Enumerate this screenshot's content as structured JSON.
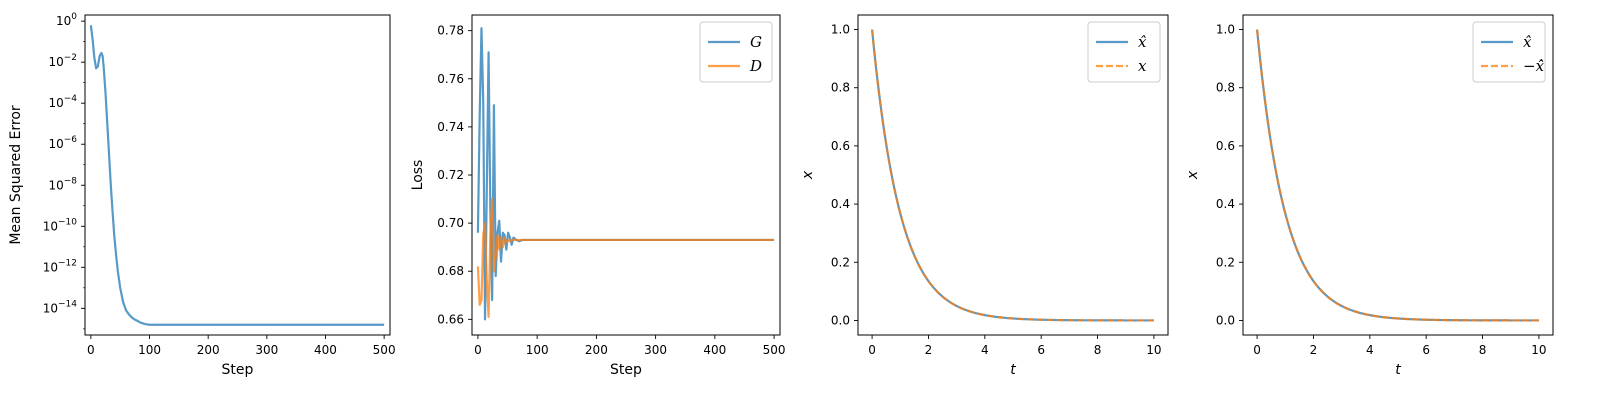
{
  "chart_data": [
    {
      "type": "line",
      "title": "",
      "xlabel": "Step",
      "ylabel": "Mean Squared Error",
      "xlim": [
        -10,
        510
      ],
      "xticks": [
        0,
        100,
        200,
        300,
        400,
        500
      ],
      "ylim_log10": [
        -15.3,
        0.3
      ],
      "yscale": "log",
      "yticks_exp": [
        0,
        -2,
        -4,
        -6,
        -8,
        -10,
        -12,
        -14
      ],
      "legend": null,
      "grid": false,
      "series": [
        {
          "name": "",
          "color": "#1f77b4",
          "x": [
            0,
            3,
            6,
            9,
            12,
            15,
            18,
            20,
            22,
            25,
            28,
            31,
            34,
            37,
            40,
            43,
            46,
            50,
            55,
            60,
            65,
            70,
            75,
            80,
            85,
            90,
            95,
            100,
            110,
            150,
            200,
            300,
            400,
            500
          ],
          "y_log10": [
            -0.2,
            -0.9,
            -1.8,
            -2.3,
            -2.2,
            -1.7,
            -1.55,
            -1.7,
            -2.3,
            -3.5,
            -5.0,
            -6.5,
            -8.0,
            -9.3,
            -10.5,
            -11.4,
            -12.2,
            -13.0,
            -13.7,
            -14.1,
            -14.3,
            -14.45,
            -14.55,
            -14.62,
            -14.7,
            -14.75,
            -14.78,
            -14.8,
            -14.8,
            -14.8,
            -14.8,
            -14.8,
            -14.8,
            -14.8
          ]
        }
      ]
    },
    {
      "type": "line",
      "title": "",
      "xlabel": "Step",
      "ylabel": "Loss",
      "xlim": [
        -10,
        510
      ],
      "xticks": [
        0,
        100,
        200,
        300,
        400,
        500
      ],
      "ylim": [
        0.6535,
        0.7865
      ],
      "yticks": [
        0.66,
        0.68,
        0.7,
        0.72,
        0.74,
        0.76,
        0.78
      ],
      "legend": "top-right",
      "grid": false,
      "series": [
        {
          "name": "G",
          "color": "#1f77b4",
          "x": [
            0,
            3,
            6,
            9,
            12,
            15,
            18,
            21,
            24,
            27,
            30,
            33,
            36,
            39,
            42,
            45,
            48,
            51,
            54,
            57,
            60,
            65,
            70,
            75,
            80,
            90,
            100,
            500
          ],
          "y": [
            0.696,
            0.745,
            0.781,
            0.75,
            0.66,
            0.715,
            0.771,
            0.705,
            0.668,
            0.749,
            0.678,
            0.696,
            0.701,
            0.684,
            0.696,
            0.695,
            0.689,
            0.696,
            0.694,
            0.691,
            0.694,
            0.693,
            0.6925,
            0.693,
            0.693,
            0.693,
            0.693,
            0.693
          ]
        },
        {
          "name": "D",
          "color": "#ff7f0e",
          "x": [
            0,
            3,
            6,
            9,
            12,
            15,
            18,
            21,
            24,
            27,
            30,
            33,
            36,
            39,
            42,
            45,
            48,
            51,
            54,
            57,
            60,
            65,
            70,
            75,
            80,
            90,
            100,
            500
          ],
          "y": [
            0.682,
            0.666,
            0.668,
            0.695,
            0.7,
            0.676,
            0.661,
            0.695,
            0.71,
            0.68,
            0.686,
            0.695,
            0.689,
            0.694,
            0.69,
            0.694,
            0.692,
            0.693,
            0.6925,
            0.693,
            0.693,
            0.693,
            0.693,
            0.693,
            0.693,
            0.693,
            0.693,
            0.693
          ]
        }
      ]
    },
    {
      "type": "line",
      "title": "",
      "xlabel": "t",
      "ylabel": "x",
      "xlim": [
        -0.5,
        10.5
      ],
      "xticks": [
        0,
        2,
        4,
        6,
        8,
        10
      ],
      "ylim": [
        -0.05,
        1.05
      ],
      "yticks": [
        0.0,
        0.2,
        0.4,
        0.6,
        0.8,
        1.0
      ],
      "legend": "top-right",
      "grid": false,
      "function": "exp(-t)",
      "series": [
        {
          "name": "x̂",
          "color": "#1f77b4",
          "style": "solid"
        },
        {
          "name": "x",
          "color": "#ff7f0e",
          "style": "dashed"
        }
      ]
    },
    {
      "type": "line",
      "title": "",
      "xlabel": "t",
      "ylabel": "x",
      "xlim": [
        -0.5,
        10.5
      ],
      "xticks": [
        0,
        2,
        4,
        6,
        8,
        10
      ],
      "ylim": [
        -0.05,
        1.05
      ],
      "yticks": [
        0.0,
        0.2,
        0.4,
        0.6,
        0.8,
        1.0
      ],
      "legend": "top-right",
      "grid": false,
      "function": "exp(-t)",
      "series": [
        {
          "name": "x̂",
          "color": "#1f77b4",
          "style": "solid"
        },
        {
          "name": "−x̂̇",
          "color": "#ff7f0e",
          "style": "dashed"
        }
      ]
    }
  ]
}
